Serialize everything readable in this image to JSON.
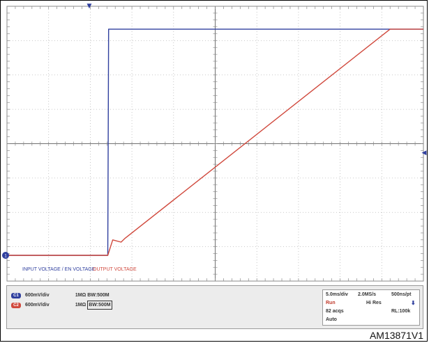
{
  "chart_data": {
    "type": "line",
    "title": "",
    "xlabel": "",
    "ylabel": "",
    "grid": true,
    "x_divisions": 10,
    "y_divisions": 8,
    "xlim": [
      0,
      50
    ],
    "ylim": [
      0,
      4.8
    ],
    "x_unit": "ms",
    "y_unit": "V",
    "series": [
      {
        "name": "INPUT VOLTAGE / EN VOLTAGE",
        "color": "#2f3f9e",
        "x": [
          0,
          12.1,
          12.2,
          12.4,
          50
        ],
        "y": [
          0.45,
          0.45,
          4.4,
          4.4,
          4.4
        ]
      },
      {
        "name": "OUTPUT VOLTAGE",
        "color": "#d0483c",
        "x": [
          0,
          12.1,
          12.7,
          13.7,
          14.2,
          46.0,
          50
        ],
        "y": [
          0.45,
          0.45,
          0.72,
          0.68,
          0.75,
          4.4,
          4.4
        ]
      }
    ],
    "legend_position": "bottom-left"
  },
  "markers": {
    "trigger_marker": "▼",
    "ground_marker": "1",
    "level_marker": "◀"
  },
  "channels": [
    {
      "badge": "C1",
      "color": "#2f3f9e",
      "scale": "600mV/div",
      "impedance": "1MΩ",
      "bandwidth": "BW:500M"
    },
    {
      "badge": "C2",
      "color": "#d0483c",
      "scale": "600mV/div",
      "impedance": "1MΩ",
      "bandwidth": "BW:500M"
    }
  ],
  "acquisition": {
    "timebase": "5.0ms/div",
    "sample_rate": "2.0MS/s",
    "resolution": "500ns/pt",
    "state": "Run",
    "mode": "Hi Res",
    "acqs": "82 acqs",
    "record_length": "RL:100k",
    "trigger_mode": "Auto",
    "trigger_icon": "⬇"
  },
  "figure_id": "AM13871V1"
}
